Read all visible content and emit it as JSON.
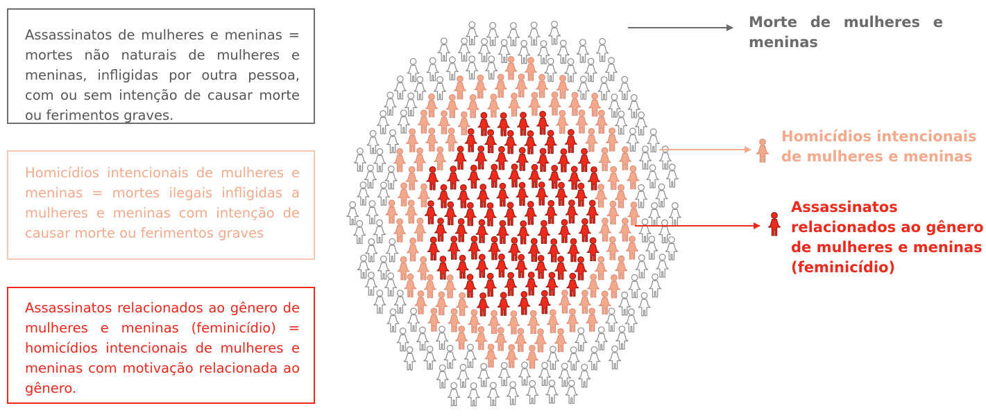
{
  "definitions": {
    "all_deaths": "Assassinatos de mulheres e meninas = mortes não naturais de mulheres e meninas, infligidas por outra pessoa, com ou sem intenção de causar morte ou ferimentos graves.",
    "intentional": "Homicídios intencionais de mulheres e meninas = mortes ilegais infligidas a mulheres e meninas com intenção de causar morte ou ferimentos graves",
    "femicide": "Assassinatos relacionados ao gênero de mulheres e meninas (feminicídio) = homicídios intencionais de mulheres e meninas com motivação relacionada ao gênero."
  },
  "legend": {
    "all_deaths": "Morte de mulheres e meninas",
    "intentional": "Homicídios intencionais de mulheres e meninas",
    "femicide": "Assassinatos relacionados ao gênero de mulheres e meninas (feminicídio)"
  },
  "colors": {
    "all_deaths": "#6b6b6b",
    "intentional": "#f3a98c",
    "femicide": "#ee2a1d"
  },
  "icon": "female-person-icon"
}
